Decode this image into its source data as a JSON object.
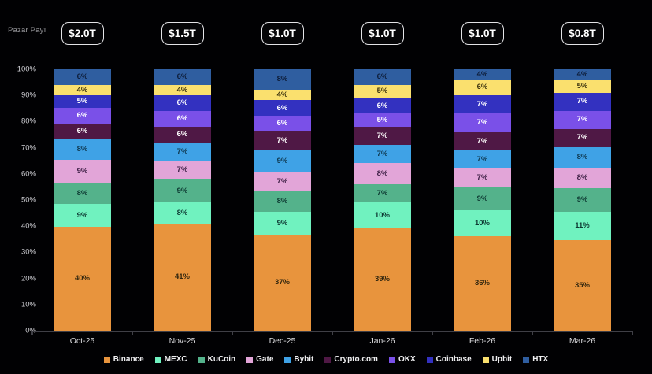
{
  "axis_title": "Pazar Payı",
  "chart_data": {
    "type": "bar",
    "subtype": "stacked-100-percent",
    "title": "",
    "xlabel": "",
    "ylabel": "Pazar Payı",
    "ylim": [
      0,
      100
    ],
    "grid": false,
    "legend_position": "bottom",
    "categories": [
      "Oct-25",
      "Nov-25",
      "Dec-25",
      "Jan-26",
      "Feb-26",
      "Mar-26"
    ],
    "totals": [
      "$2.0T",
      "$1.5T",
      "$1.0T",
      "$1.0T",
      "$1.0T",
      "$0.8T"
    ],
    "y_ticks": [
      "100%",
      "90%",
      "80%",
      "70%",
      "60%",
      "50%",
      "40%",
      "30%",
      "20%",
      "10%",
      "0%"
    ],
    "series": [
      {
        "name": "Binance",
        "color": "#E8943D",
        "label_color": "#33270f",
        "values": [
          40,
          41,
          37,
          39,
          36,
          35
        ]
      },
      {
        "name": "MEXC",
        "color": "#70F2BF",
        "label_color": "#0e3a33",
        "values": [
          9,
          8,
          9,
          10,
          10,
          11
        ]
      },
      {
        "name": "KuCoin",
        "color": "#54B28B",
        "label_color": "#0e3a33",
        "values": [
          8,
          9,
          8,
          7,
          9,
          9
        ]
      },
      {
        "name": "Gate",
        "color": "#E2A5D8",
        "label_color": "#3f2147",
        "values": [
          9,
          7,
          7,
          8,
          7,
          8
        ]
      },
      {
        "name": "Bybit",
        "color": "#3FA2E6",
        "label_color": "#103a52",
        "values": [
          8,
          7,
          9,
          7,
          7,
          8
        ]
      },
      {
        "name": "Crypto.com",
        "color": "#4F1845",
        "label_color": "#ffffff",
        "values": [
          6,
          6,
          7,
          7,
          7,
          7
        ]
      },
      {
        "name": "OKX",
        "color": "#7A50E8",
        "label_color": "#ffffff",
        "values": [
          6,
          6,
          6,
          5,
          7,
          7
        ]
      },
      {
        "name": "Coinbase",
        "color": "#3331C0",
        "label_color": "#ffffff",
        "values": [
          5,
          6,
          6,
          6,
          7,
          7
        ]
      },
      {
        "name": "Upbit",
        "color": "#FAE06E",
        "label_color": "#3c330f",
        "values": [
          4,
          4,
          4,
          5,
          6,
          5
        ]
      },
      {
        "name": "HTX",
        "color": "#2F5EA0",
        "label_color": "#0d1c38",
        "values": [
          6,
          6,
          8,
          6,
          4,
          4
        ]
      }
    ]
  }
}
